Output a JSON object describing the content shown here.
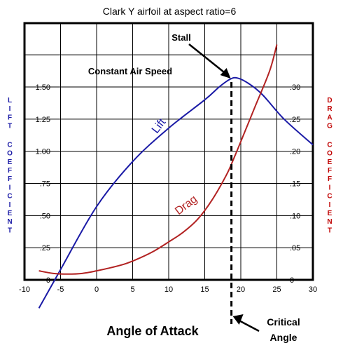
{
  "chart_data": {
    "type": "line",
    "title": "Clark Y airfoil at aspect ratio=6",
    "xlabel": "Angle of Attack",
    "ylabel_left": "LIFT COEFFICIENT",
    "ylabel_right": "DRAG COEFFICIENT",
    "xlim": [
      -10,
      30
    ],
    "ylim_left": [
      0,
      2.0
    ],
    "ylim_right": [
      0,
      0.4
    ],
    "x_ticks": [
      "-10",
      "-5",
      "0",
      "5",
      "10",
      "15",
      "20",
      "25",
      "30"
    ],
    "y_ticks_left": [
      "0",
      ".25",
      ".50",
      ".75",
      "1.00",
      "1.25",
      "1.50"
    ],
    "y_ticks_right": [
      "0",
      ".05",
      ".10",
      ".15",
      ".20",
      ".25",
      ".30"
    ],
    "grid": true,
    "series": [
      {
        "name": "Lift",
        "color": "#1a1aa6",
        "axis": "left",
        "x": [
          -8,
          -5,
          0,
          5,
          10,
          15,
          17,
          18.5,
          19.5,
          21,
          23,
          26,
          30
        ],
        "y": [
          -0.22,
          0.08,
          0.57,
          0.92,
          1.18,
          1.4,
          1.5,
          1.56,
          1.57,
          1.53,
          1.44,
          1.25,
          1.05
        ]
      },
      {
        "name": "Drag",
        "color": "#b22222",
        "axis": "right",
        "x": [
          -8,
          -6,
          -4,
          -2,
          0,
          2,
          4,
          6,
          8,
          10,
          12,
          14,
          16,
          18,
          19,
          20,
          22,
          24,
          25
        ],
        "y": [
          0.014,
          0.01,
          0.009,
          0.01,
          0.014,
          0.019,
          0.025,
          0.034,
          0.045,
          0.059,
          0.074,
          0.094,
          0.124,
          0.163,
          0.188,
          0.215,
          0.27,
          0.325,
          0.366
        ]
      }
    ],
    "annotations": {
      "constant_air_speed": "Constant Air Speed",
      "stall": "Stall",
      "critical_angle_line1": "Critical",
      "critical_angle_line2": "Angle",
      "critical_angle_x": 18.7,
      "stall_x": 18.7,
      "stall_y": 1.56
    }
  },
  "colors": {
    "lift": "#1a1aa6",
    "drag": "#b22222",
    "axis_title": "#c00000"
  }
}
